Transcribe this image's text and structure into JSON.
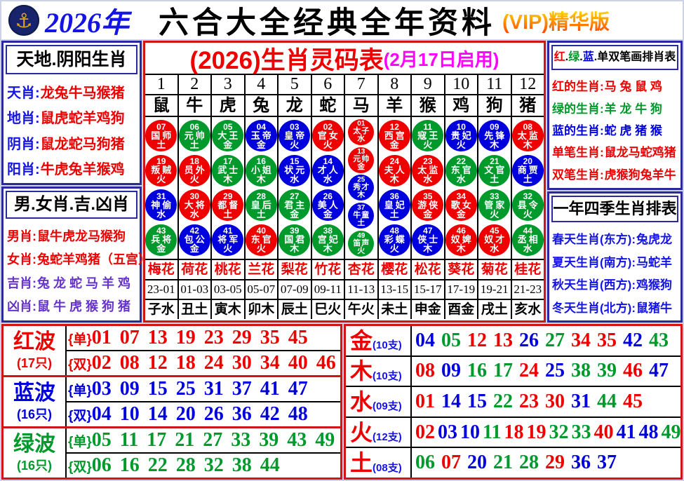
{
  "header": {
    "year": "2026年",
    "title": "六合大全经典全年资料",
    "vip": "(VIP)精华版",
    "logo_glyph": "⚓"
  },
  "colors": {
    "red": "#ee0000",
    "blue": "#0000dd",
    "green": "#00992b",
    "magenta": "#ff00ff",
    "label_blue": "#1414e6",
    "purple": "#6633cc",
    "black": "#000000"
  },
  "wave_sets": {
    "red": [
      1,
      2,
      7,
      8,
      12,
      13,
      18,
      19,
      23,
      24,
      29,
      30,
      34,
      35,
      40,
      45,
      46
    ],
    "blue": [
      3,
      4,
      9,
      10,
      14,
      15,
      20,
      25,
      26,
      31,
      36,
      37,
      41,
      42,
      47,
      48
    ],
    "green": [
      5,
      6,
      11,
      16,
      17,
      21,
      22,
      27,
      28,
      32,
      33,
      38,
      39,
      43,
      44,
      49
    ]
  },
  "left_top": {
    "title": "天地.阴阳生肖",
    "rows": [
      {
        "label": "天肖",
        "value": "龙兔牛马猴猪",
        "label_c": "label_blue",
        "value_c": "red"
      },
      {
        "label": "地肖",
        "value": "鼠虎蛇羊鸡狗",
        "label_c": "label_blue",
        "value_c": "red"
      },
      {
        "label": "阴肖",
        "value": "鼠龙蛇马狗猪",
        "label_c": "label_blue",
        "value_c": "red"
      },
      {
        "label": "阳肖",
        "value": "牛虎兔羊猴鸡",
        "label_c": "label_blue",
        "value_c": "red"
      }
    ]
  },
  "left_bottom": {
    "title": "男.女肖.吉.凶肖",
    "rows": [
      {
        "label": "男肖",
        "value": "鼠牛虎龙马猴狗",
        "label_c": "red",
        "value_c": "red"
      },
      {
        "label": "女肖",
        "value": "兔蛇羊鸡猪（五宫）",
        "label_c": "red",
        "value_c": "red"
      },
      {
        "label": "吉肖",
        "value": "兔 龙 蛇 马 羊 鸡",
        "label_c": "purple",
        "value_c": "purple"
      },
      {
        "label": "凶肖",
        "value": "鼠 牛 虎 猴 狗 猪",
        "label_c": "purple",
        "value_c": "purple"
      }
    ]
  },
  "right_top": {
    "title_segments": [
      {
        "t": "红",
        "c": "red"
      },
      {
        "t": ".",
        "c": "black"
      },
      {
        "t": "绿",
        "c": "green"
      },
      {
        "t": ".",
        "c": "black"
      },
      {
        "t": "蓝",
        "c": "blue"
      },
      {
        "t": ".",
        "c": "black"
      },
      {
        "t": "单双笔画排肖表",
        "c": "black"
      }
    ],
    "rows": [
      {
        "label": "红的生肖",
        "value": "马 兔 鼠 鸡",
        "label_c": "red",
        "value_c": "red"
      },
      {
        "label": "绿的生肖",
        "value": "羊 龙 牛 狗",
        "label_c": "green",
        "value_c": "green"
      },
      {
        "label": "蓝的生肖",
        "value": "蛇 虎 猪 猴",
        "label_c": "blue",
        "value_c": "blue"
      },
      {
        "label": "单笔生肖",
        "value": "鼠龙马蛇鸡猪",
        "label_c": "red",
        "value_c": "red"
      },
      {
        "label": "双笔生肖",
        "value": "虎猴狗兔羊牛",
        "label_c": "red",
        "value_c": "red"
      }
    ]
  },
  "right_bottom": {
    "title": "一年四季生肖排表",
    "rows": [
      {
        "label": "春天生肖(东方)",
        "value": "兔虎龙",
        "label_c": "label_blue",
        "value_c": "label_blue"
      },
      {
        "label": "夏天生肖(南方)",
        "value": "马蛇羊",
        "label_c": "label_blue",
        "value_c": "label_blue"
      },
      {
        "label": "秋天生肖(西方)",
        "value": "鸡猴狗",
        "label_c": "label_blue",
        "value_c": "label_blue"
      },
      {
        "label": "冬天生肖(北方)",
        "value": "鼠猪牛",
        "label_c": "label_blue",
        "value_c": "label_blue"
      }
    ]
  },
  "main_table": {
    "title_main": "(2026)生肖灵码表",
    "title_sub": "(2月17日启用)",
    "columns": [
      {
        "num": "1",
        "zodiac": "鼠",
        "circles": [
          [
            "07",
            "国师",
            "土"
          ],
          [
            "19",
            "叛贼",
            "火"
          ],
          [
            "31",
            "神偷",
            "水"
          ],
          [
            "43",
            "兵将",
            "金"
          ]
        ]
      },
      {
        "num": "2",
        "zodiac": "牛",
        "circles": [
          [
            "06",
            "元帅",
            "土"
          ],
          [
            "18",
            "员外",
            "火"
          ],
          [
            "30",
            "大将",
            "水"
          ],
          [
            "42",
            "包公",
            "金"
          ]
        ]
      },
      {
        "num": "3",
        "zodiac": "虎",
        "circles": [
          [
            "05",
            "大王",
            "金"
          ],
          [
            "17",
            "武士",
            "木"
          ],
          [
            "29",
            "都督",
            "土"
          ],
          [
            "41",
            "将军",
            "火"
          ]
        ]
      },
      {
        "num": "4",
        "zodiac": "兔",
        "circles": [
          [
            "04",
            "玉帝",
            "金"
          ],
          [
            "16",
            "小姐",
            "木"
          ],
          [
            "28",
            "皇后",
            "土"
          ],
          [
            "40",
            "东官",
            "火"
          ]
        ]
      },
      {
        "num": "5",
        "zodiac": "龙",
        "circles": [
          [
            "03",
            "皇帝",
            "火"
          ],
          [
            "15",
            "状元",
            "水"
          ],
          [
            "27",
            "君主",
            "金"
          ],
          [
            "39",
            "国君",
            "木"
          ]
        ]
      },
      {
        "num": "6",
        "zodiac": "蛇",
        "circles": [
          [
            "02",
            "官女",
            "火"
          ],
          [
            "14",
            "才人",
            "水"
          ],
          [
            "26",
            "美人",
            "金"
          ],
          [
            "38",
            "宫妃",
            "木"
          ]
        ]
      },
      {
        "num": "7",
        "zodiac": "马",
        "circles": [
          [
            "01",
            "太子",
            "水"
          ],
          [
            "13",
            "元帅",
            "金"
          ],
          [
            "25",
            "秀才",
            "木"
          ],
          [
            "37",
            "牛童",
            "土"
          ],
          [
            "49",
            "笛声",
            "火"
          ]
        ]
      },
      {
        "num": "8",
        "zodiac": "羊",
        "circles": [
          [
            "12",
            "西宫",
            "金"
          ],
          [
            "24",
            "夫人",
            "木"
          ],
          [
            "36",
            "皇妃",
            "土"
          ],
          [
            "48",
            "彩蝶",
            "火"
          ]
        ]
      },
      {
        "num": "9",
        "zodiac": "猴",
        "circles": [
          [
            "11",
            "寇王",
            "火"
          ],
          [
            "23",
            "太监",
            "水"
          ],
          [
            "35",
            "游侠",
            "金"
          ],
          [
            "47",
            "侠士",
            "木"
          ]
        ]
      },
      {
        "num": "10",
        "zodiac": "鸡",
        "circles": [
          [
            "10",
            "贵妃",
            "火"
          ],
          [
            "22",
            "东官",
            "水"
          ],
          [
            "34",
            "歌女",
            "金"
          ],
          [
            "46",
            "奴婢",
            "木"
          ]
        ]
      },
      {
        "num": "11",
        "zodiac": "狗",
        "circles": [
          [
            "09",
            "先锋",
            "木"
          ],
          [
            "21",
            "文官",
            "土"
          ],
          [
            "33",
            "管家",
            "火"
          ],
          [
            "45",
            "奴才",
            "水"
          ]
        ]
      },
      {
        "num": "12",
        "zodiac": "猪",
        "circles": [
          [
            "08",
            "太监",
            "木"
          ],
          [
            "20",
            "商贾",
            "土"
          ],
          [
            "32",
            "县令",
            "火"
          ],
          [
            "44",
            "丞相",
            "水"
          ]
        ]
      }
    ],
    "flowers": [
      "梅花",
      "荷花",
      "桃花",
      "兰花",
      "梨花",
      "竹花",
      "杏花",
      "樱花",
      "松花",
      "葵花",
      "菊花",
      "桂花"
    ],
    "times": [
      "23-01",
      "01-03",
      "03-05",
      "05-07",
      "07-09",
      "09-11",
      "11-13",
      "13-15",
      "15-17",
      "17-19",
      "19-21",
      "21-23"
    ],
    "branches": [
      "子水",
      "丑土",
      "寅木",
      "卯木",
      "辰土",
      "巳火",
      "午火",
      "未土",
      "申金",
      "酉金",
      "戌土",
      "亥水"
    ]
  },
  "odd_label": "{单}",
  "even_label": "{双}",
  "waves": [
    {
      "key": "red",
      "name": "红波",
      "count": "(17只)",
      "color": "red",
      "odd": "01 07 13 19 23 29 35 45",
      "even": "02 08 12 18 24 30 34 40 46"
    },
    {
      "key": "blue",
      "name": "蓝波",
      "count": "(16只)",
      "color": "blue",
      "odd": "03 09 15 25 31 37 41 47",
      "even": "04 10 14 20 26 36 42 48"
    },
    {
      "key": "green",
      "name": "绿波",
      "count": "(16只)",
      "color": "green",
      "odd": "05 11 17 21 27 33 39 43 49",
      "even": "06 16 22 28 32 38 44"
    }
  ],
  "elements": [
    {
      "name": "金",
      "count": "(10支)",
      "numbers": [
        "04",
        "05",
        "12",
        "13",
        "26",
        "27",
        "34",
        "35",
        "42",
        "43"
      ]
    },
    {
      "name": "木",
      "count": "(10支)",
      "numbers": [
        "08",
        "09",
        "16",
        "17",
        "24",
        "25",
        "38",
        "39",
        "46",
        "47"
      ]
    },
    {
      "name": "水",
      "count": "(09支)",
      "numbers": [
        "01",
        "14",
        "15",
        "22",
        "23",
        "30",
        "31",
        "44",
        "45"
      ]
    },
    {
      "name": "火",
      "count": "(12支)",
      "numbers": [
        "02",
        "03",
        "10",
        "11",
        "18",
        "19",
        "32",
        "33",
        "40",
        "41",
        "48",
        "49"
      ]
    },
    {
      "name": "土",
      "count": "(08支)",
      "numbers": [
        "06",
        "07",
        "20",
        "21",
        "28",
        "29",
        "36",
        "37"
      ]
    }
  ]
}
